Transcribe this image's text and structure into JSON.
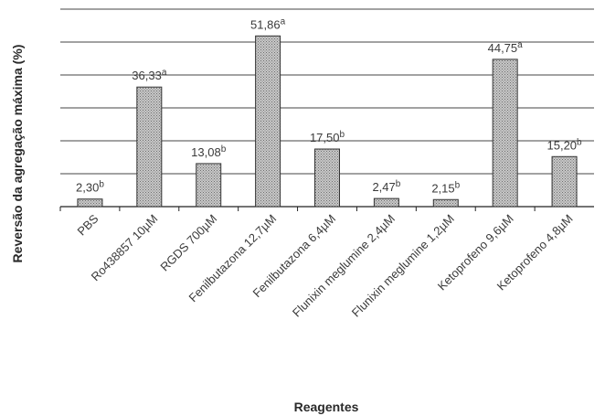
{
  "chart_data": {
    "type": "bar",
    "xlabel": "Reagentes",
    "ylabel": "Reversão da agregação máxima  (%)",
    "ylim": [
      0,
      60
    ],
    "grid": true,
    "categories": [
      "PBS",
      "Ro438857 10µM",
      "RGDS 700µM",
      "Fenilbutazona 12,7µM",
      "Fenilbutazona 6,4µM",
      "Flunixin meglumine 2,4µM",
      "Flunixin meglumine 1,2µM",
      "Ketoprofeno 9,6µM",
      "Ketoprofeno 4,8µM"
    ],
    "values": [
      2.3,
      36.33,
      13.08,
      51.86,
      17.5,
      2.47,
      2.15,
      44.75,
      15.2
    ],
    "value_labels": [
      "2,30",
      "36,33",
      "13,08",
      "51,86",
      "17,50",
      "2,47",
      "2,15",
      "44,75",
      "15,20"
    ],
    "significance": [
      "b",
      "a",
      "b",
      "a",
      "b",
      "b",
      "b",
      "a",
      "b"
    ],
    "colors": {
      "bar_fill": "#c8c8c8",
      "bar_dots": "#6e6e6e",
      "bar_stroke": "#333333",
      "grid": "#444444"
    }
  }
}
